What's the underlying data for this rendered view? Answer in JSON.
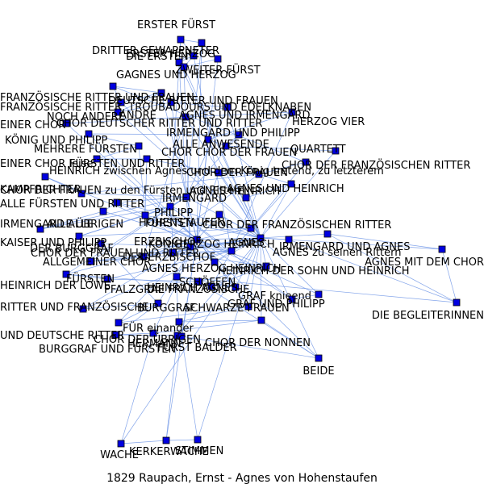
{
  "title": "1829 Raupach, Ernst - Agnes von Hohenstaufen",
  "graph": {
    "nodes": [
      {
        "id": "n1",
        "label": "DRITTER GEWAPPNETER"
      },
      {
        "id": "n2",
        "label": "ERSTER FÜRST"
      },
      {
        "id": "n3",
        "label": "DIE ERSTEN"
      },
      {
        "id": "n4",
        "label": "ERSTER HERZOG"
      },
      {
        "id": "n5",
        "label": "ZWEITER FÜRST"
      },
      {
        "id": "n6",
        "label": "GAGNES UND HERZOG"
      },
      {
        "id": "n7",
        "label": "FRANZÖSISCHE RITTER, TROUBADOURS UND EDELKNABEN"
      },
      {
        "id": "n8",
        "label": "FRANZÖSISCHE RITTER UND FRAUEN"
      },
      {
        "id": "n9",
        "label": "DEUTSCHE RITTER UND FRAUEN"
      },
      {
        "id": "n10",
        "label": "NOCH ANDERE"
      },
      {
        "id": "n11",
        "label": "ANDRE"
      },
      {
        "id": "n12",
        "label": "AGNES UND IRMENGARD"
      },
      {
        "id": "n13",
        "label": "EINER CHOR"
      },
      {
        "id": "n14",
        "label": "CHOR DEUTSCHER RITTER UND RITTER"
      },
      {
        "id": "n15",
        "label": "HERZOG VIER"
      },
      {
        "id": "n16",
        "label": "IRMENGARD UND PHILIPP"
      },
      {
        "id": "n17",
        "label": "KÖNIG UND PHILIPP"
      },
      {
        "id": "n18",
        "label": "ALLE ANWESENDE"
      },
      {
        "id": "n19",
        "label": "MEHRERE FÜRSTEN"
      },
      {
        "id": "n20",
        "label": "CHOR CHOR DER FRAUEN"
      },
      {
        "id": "n21",
        "label": "QUARTETT"
      },
      {
        "id": "n22",
        "label": "EINER CHOR leise"
      },
      {
        "id": "n23",
        "label": "FÜRSTEN UND RITTER"
      },
      {
        "id": "n24",
        "label": "CHOR DER FRANZÖSISCHEN RITTER"
      },
      {
        "id": "n25",
        "label": "HEINRICH zwischen Agnes und dem König tretend, zu letzterem"
      },
      {
        "id": "n26",
        "label": "CHOR DER FRAUEN"
      },
      {
        "id": "n27",
        "label": "KAMPFRICHTER"
      },
      {
        "id": "n28",
        "label": "AGNES UND HEINRICH"
      },
      {
        "id": "n29",
        "label": "CHOR DER FRAUEN zu den Fürsten und Rittern"
      },
      {
        "id": "n30",
        "label": "IRMENGARD"
      },
      {
        "id": "n31",
        "label": "ALLE FÜRSTEN UND RITTER"
      },
      {
        "id": "n32",
        "label": "ALLE ÜBRIGEN"
      },
      {
        "id": "n33",
        "label": "IRMENGARD ALLE"
      },
      {
        "id": "n34",
        "label": "PHILIPP"
      },
      {
        "id": "n35",
        "label": "FÜRSTEN"
      },
      {
        "id": "n36",
        "label": "KAISER UND PHILIPP"
      },
      {
        "id": "n37",
        "label": "CHOR DER FRANZÖSISCHEN RITTER"
      },
      {
        "id": "n38",
        "label": "KÖNIG"
      },
      {
        "id": "n39",
        "label": "AGNES"
      },
      {
        "id": "n40",
        "label": "IRMENGARD UND AGNES"
      },
      {
        "id": "n41",
        "label": "DER BURGGRAF"
      },
      {
        "id": "n42",
        "label": "ERZBISCHOF"
      },
      {
        "id": "n43",
        "label": "AGNES zu seinen Rittern"
      },
      {
        "id": "n44",
        "label": "CHOR DER FRAUEN UND RITTER"
      },
      {
        "id": "n45",
        "label": "AGNES MIT DEM CHOR"
      },
      {
        "id": "n46",
        "label": "ALLGEMEINER CHOR"
      },
      {
        "id": "n47",
        "label": "HERZOG HEINRICH"
      },
      {
        "id": "n48",
        "label": "DER ERZBISCHOF"
      },
      {
        "id": "n49",
        "label": "HEINRICH DER SOHN UND HEINRICH"
      },
      {
        "id": "n50",
        "label": "DIE FRANZÖSISCHE"
      },
      {
        "id": "n51",
        "label": "HEINRICH DER LÖWE"
      },
      {
        "id": "n52",
        "label": "FÜRSTEN"
      },
      {
        "id": "n53",
        "label": "SCHÖFFEN"
      },
      {
        "id": "n54",
        "label": "PFALZGRAF"
      },
      {
        "id": "n55",
        "label": "DIE BEGLEITERINNEN"
      },
      {
        "id": "n56",
        "label": "GRAF UND PHILIPP"
      },
      {
        "id": "n57",
        "label": "GRAF knieend"
      },
      {
        "id": "n58",
        "label": "RITTER UND FRANZÖSISCHE"
      },
      {
        "id": "n59",
        "label": "BURGGRAF"
      },
      {
        "id": "n60",
        "label": "UND DEUTSCHE RITTER"
      },
      {
        "id": "n61",
        "label": "SCHWARZE FRAUEN"
      },
      {
        "id": "n62",
        "label": "FÜR einander"
      },
      {
        "id": "n63",
        "label": "CHOR DER NONNEN"
      },
      {
        "id": "n64",
        "label": "CHOR DER ÜBRIGEN"
      },
      {
        "id": "n65",
        "label": "BURGGRAF UND FÜRSTEN"
      },
      {
        "id": "n66",
        "label": "HERMANN"
      },
      {
        "id": "n67",
        "label": "FÜRST BALDER"
      },
      {
        "id": "n68",
        "label": "BEIDE"
      },
      {
        "id": "n69",
        "label": "WACHE"
      },
      {
        "id": "n70",
        "label": "KERKERWACHE"
      },
      {
        "id": "n71",
        "label": "STIMMEN"
      },
      {
        "id": "n72",
        "label": "HOHENSTAUFEN"
      },
      {
        "id": "n73",
        "label": "AGNES HEINRICH"
      },
      {
        "id": "n74",
        "label": "AGNES HERZOG HEINRICH"
      },
      {
        "id": "n75",
        "label": "HEINRICH AGNES"
      }
    ],
    "edges": [
      [
        "n1",
        "n2"
      ],
      [
        "n1",
        "n3"
      ],
      [
        "n1",
        "n4"
      ],
      [
        "n2",
        "n3"
      ],
      [
        "n2",
        "n5"
      ],
      [
        "n3",
        "n4"
      ],
      [
        "n4",
        "n6"
      ],
      [
        "n5",
        "n6"
      ],
      [
        "n3",
        "n39"
      ],
      [
        "n5",
        "n38"
      ],
      [
        "n2",
        "n30"
      ],
      [
        "n6",
        "n42"
      ],
      [
        "n1",
        "n34"
      ],
      [
        "n4",
        "n47"
      ],
      [
        "n7",
        "n8"
      ],
      [
        "n7",
        "n9"
      ],
      [
        "n8",
        "n9"
      ],
      [
        "n9",
        "n10"
      ],
      [
        "n10",
        "n11"
      ],
      [
        "n11",
        "n12"
      ],
      [
        "n12",
        "n14"
      ],
      [
        "n13",
        "n14"
      ],
      [
        "n14",
        "n15"
      ],
      [
        "n15",
        "n18"
      ],
      [
        "n16",
        "n17"
      ],
      [
        "n16",
        "n20"
      ],
      [
        "n17",
        "n19"
      ],
      [
        "n18",
        "n20"
      ],
      [
        "n20",
        "n21"
      ],
      [
        "n19",
        "n22"
      ],
      [
        "n22",
        "n23"
      ],
      [
        "n23",
        "n25"
      ],
      [
        "n24",
        "n26"
      ],
      [
        "n25",
        "n26"
      ],
      [
        "n26",
        "n28"
      ],
      [
        "n27",
        "n29"
      ],
      [
        "n29",
        "n30"
      ],
      [
        "n30",
        "n31"
      ],
      [
        "n31",
        "n32"
      ],
      [
        "n32",
        "n33"
      ],
      [
        "n33",
        "n34"
      ],
      [
        "n34",
        "n35"
      ],
      [
        "n35",
        "n36"
      ],
      [
        "n36",
        "n37"
      ],
      [
        "n37",
        "n38"
      ],
      [
        "n38",
        "n39"
      ],
      [
        "n39",
        "n40"
      ],
      [
        "n40",
        "n45"
      ],
      [
        "n39",
        "n43"
      ],
      [
        "n41",
        "n42"
      ],
      [
        "n42",
        "n44"
      ],
      [
        "n44",
        "n46"
      ],
      [
        "n46",
        "n47"
      ],
      [
        "n47",
        "n48"
      ],
      [
        "n48",
        "n49"
      ],
      [
        "n49",
        "n50"
      ],
      [
        "n50",
        "n51"
      ],
      [
        "n51",
        "n52"
      ],
      [
        "n52",
        "n53"
      ],
      [
        "n53",
        "n54"
      ],
      [
        "n54",
        "n55"
      ],
      [
        "n55",
        "n45"
      ],
      [
        "n56",
        "n57"
      ],
      [
        "n58",
        "n59"
      ],
      [
        "n59",
        "n60"
      ],
      [
        "n60",
        "n61"
      ],
      [
        "n61",
        "n62"
      ],
      [
        "n62",
        "n63"
      ],
      [
        "n63",
        "n64"
      ],
      [
        "n64",
        "n65"
      ],
      [
        "n65",
        "n66"
      ],
      [
        "n66",
        "n67"
      ],
      [
        "n67",
        "n68"
      ],
      [
        "n64",
        "n69"
      ],
      [
        "n66",
        "n70"
      ],
      [
        "n67",
        "n71"
      ],
      [
        "n69",
        "n70"
      ],
      [
        "n70",
        "n71"
      ],
      [
        "n72",
        "n39"
      ],
      [
        "n73",
        "n28"
      ],
      [
        "n74",
        "n47"
      ],
      [
        "n75",
        "n49"
      ],
      [
        "n38",
        "n42"
      ],
      [
        "n38",
        "n30"
      ],
      [
        "n39",
        "n30"
      ],
      [
        "n39",
        "n34"
      ],
      [
        "n30",
        "n34"
      ],
      [
        "n42",
        "n47"
      ],
      [
        "n38",
        "n47"
      ],
      [
        "n39",
        "n47"
      ],
      [
        "n34",
        "n47"
      ],
      [
        "n30",
        "n42"
      ],
      [
        "n39",
        "n42"
      ],
      [
        "n35",
        "n39"
      ],
      [
        "n52",
        "n38"
      ],
      [
        "n44",
        "n39"
      ],
      [
        "n46",
        "n30"
      ],
      [
        "n48",
        "n39"
      ],
      [
        "n49",
        "n38"
      ],
      [
        "n53",
        "n39"
      ],
      [
        "n57",
        "n38"
      ],
      [
        "n56",
        "n34"
      ],
      [
        "n61",
        "n39"
      ],
      [
        "n63",
        "n68"
      ],
      [
        "n50",
        "n68"
      ],
      [
        "n40",
        "n55"
      ],
      [
        "n43",
        "n55"
      ],
      [
        "n12",
        "n39"
      ],
      [
        "n16",
        "n30"
      ],
      [
        "n17",
        "n38"
      ],
      [
        "n18",
        "n39"
      ],
      [
        "n21",
        "n39"
      ],
      [
        "n24",
        "n37"
      ],
      [
        "n28",
        "n39"
      ],
      [
        "n31",
        "n38"
      ],
      [
        "n33",
        "n30"
      ],
      [
        "n36",
        "n34"
      ],
      [
        "n41",
        "n59"
      ],
      [
        "n58",
        "n39"
      ],
      [
        "n60",
        "n38"
      ],
      [
        "n62",
        "n34"
      ],
      [
        "n65",
        "n59"
      ],
      [
        "n27",
        "n38"
      ],
      [
        "n19",
        "n35"
      ],
      [
        "n23",
        "n35"
      ],
      [
        "n25",
        "n38"
      ],
      [
        "n22",
        "n38"
      ],
      [
        "n13",
        "n38"
      ],
      [
        "n15",
        "n47"
      ],
      [
        "n8",
        "n37"
      ],
      [
        "n7",
        "n24"
      ],
      [
        "n11",
        "n30"
      ],
      [
        "n10",
        "n39"
      ],
      [
        "n14",
        "n44"
      ],
      [
        "n20",
        "n26"
      ],
      [
        "n26",
        "n44"
      ],
      [
        "n29",
        "n26"
      ],
      [
        "n32",
        "n38"
      ],
      [
        "n37",
        "n39"
      ],
      [
        "n45",
        "n39"
      ],
      [
        "n54",
        "n38"
      ],
      [
        "n51",
        "n47"
      ],
      [
        "n72",
        "n38"
      ],
      [
        "n73",
        "n39"
      ],
      [
        "n74",
        "n39"
      ],
      [
        "n75",
        "n47"
      ],
      [
        "n57",
        "n39"
      ],
      [
        "n56",
        "n38"
      ],
      [
        "n64",
        "n38"
      ],
      [
        "n69",
        "n39"
      ],
      [
        "n70",
        "n38"
      ],
      [
        "n71",
        "n39"
      ],
      [
        "n66",
        "n39"
      ],
      [
        "n67",
        "n38"
      ],
      [
        "n68",
        "n39"
      ],
      [
        "n68",
        "n38"
      ],
      [
        "n59",
        "n38"
      ],
      [
        "n61",
        "n38"
      ],
      [
        "n63",
        "n39"
      ],
      [
        "n2",
        "n38"
      ],
      [
        "n3",
        "n30"
      ],
      [
        "n6",
        "n39"
      ],
      [
        "n9",
        "n38"
      ],
      [
        "n12",
        "n30"
      ],
      [
        "n14",
        "n39"
      ],
      [
        "n18",
        "n38"
      ],
      [
        "n25",
        "n39"
      ],
      [
        "n28",
        "n47"
      ],
      [
        "n31",
        "n39"
      ],
      [
        "n35",
        "n42"
      ],
      [
        "n44",
        "n38"
      ],
      [
        "n46",
        "n39"
      ],
      [
        "n49",
        "n39"
      ],
      [
        "n52",
        "n30"
      ],
      [
        "n53",
        "n38"
      ],
      [
        "n58",
        "n38"
      ]
    ]
  }
}
